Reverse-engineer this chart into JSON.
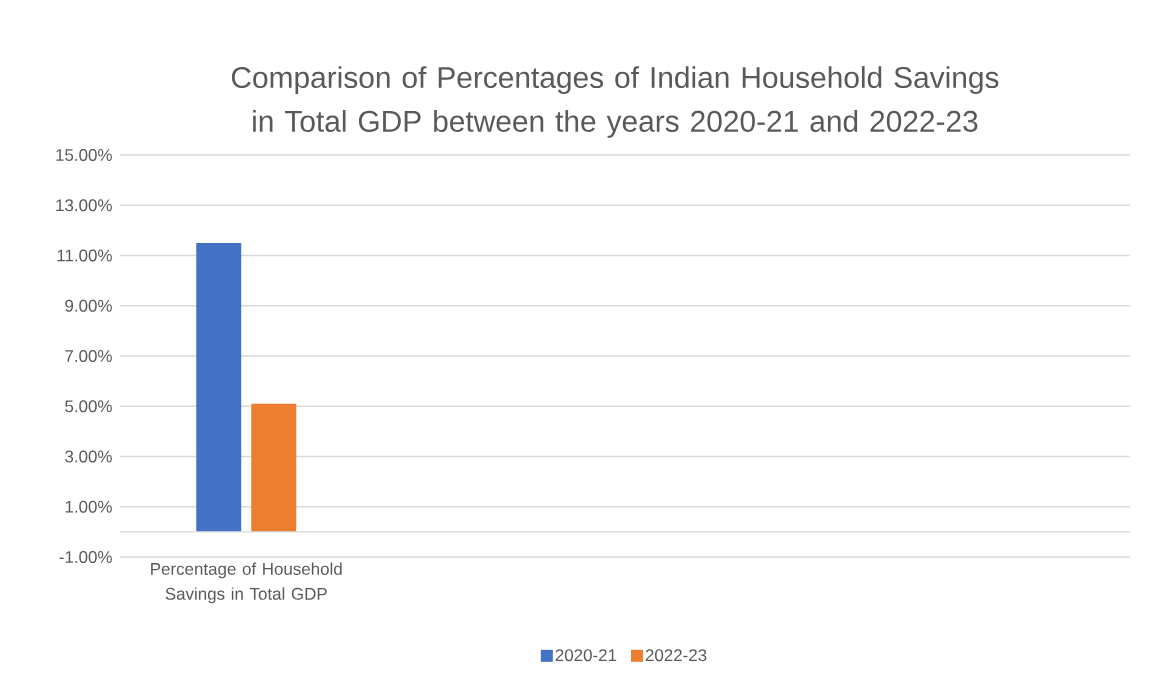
{
  "chart_data": {
    "type": "bar",
    "title": "Comparison of Percentages of Indian Household Savings in Total GDP between the years 2020-21 and 2022-23",
    "categories": [
      "Percentage of Household Savings in Total GDP",
      null,
      null,
      null
    ],
    "series": [
      {
        "name": "2020-21",
        "color": "#4472c4",
        "values": [
          11.5,
          null,
          null,
          null
        ]
      },
      {
        "name": "2022-23",
        "color": "#ed7d31",
        "values": [
          5.1,
          null,
          null,
          null
        ]
      }
    ],
    "ylim": [
      -1,
      15
    ],
    "yticks": [
      {
        "value": -1,
        "label": "-1.00%"
      },
      {
        "value": 1,
        "label": "1.00%"
      },
      {
        "value": 3,
        "label": "3.00%"
      },
      {
        "value": 5,
        "label": "5.00%"
      },
      {
        "value": 7,
        "label": "7.00%"
      },
      {
        "value": 9,
        "label": "9.00%"
      },
      {
        "value": 11,
        "label": "11.00%"
      },
      {
        "value": 13,
        "label": "13.00%"
      },
      {
        "value": 15,
        "label": "15.00%"
      }
    ],
    "grid": "y",
    "legend": "bottom"
  }
}
